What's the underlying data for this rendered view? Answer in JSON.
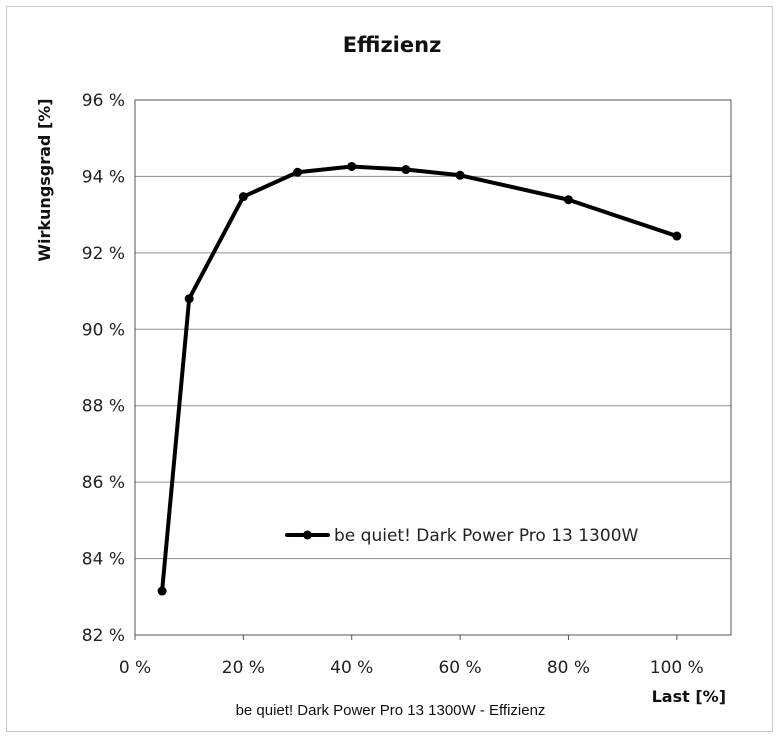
{
  "chart_data": {
    "type": "line",
    "title": "Effizienz",
    "xlabel": "Last [%]",
    "ylabel": "Wirkungsgrad [%]",
    "xlim": [
      0,
      110
    ],
    "ylim": [
      82,
      96
    ],
    "x_ticks": [
      0,
      20,
      40,
      60,
      80,
      100
    ],
    "y_ticks": [
      82,
      84,
      86,
      88,
      90,
      92,
      94,
      96
    ],
    "x_tick_labels": [
      "0 %",
      "20 %",
      "40 %",
      "60 %",
      "80 %",
      "100 %"
    ],
    "y_tick_labels": [
      "82 %",
      "84 %",
      "86 %",
      "88 %",
      "90 %",
      "92 %",
      "94 %",
      "96 %"
    ],
    "grid": true,
    "legend_position": "bottom-right",
    "series": [
      {
        "name": "be quiet! Dark Power Pro 13 1300W",
        "color": "#000000",
        "x": [
          5,
          10,
          20,
          30,
          40,
          50,
          60,
          80,
          100
        ],
        "values": [
          83.15,
          90.8,
          93.47,
          94.11,
          94.26,
          94.18,
          94.03,
          93.39,
          92.44
        ]
      }
    ]
  },
  "caption": "be quiet! Dark Power Pro 13 1300W - Effizienz"
}
